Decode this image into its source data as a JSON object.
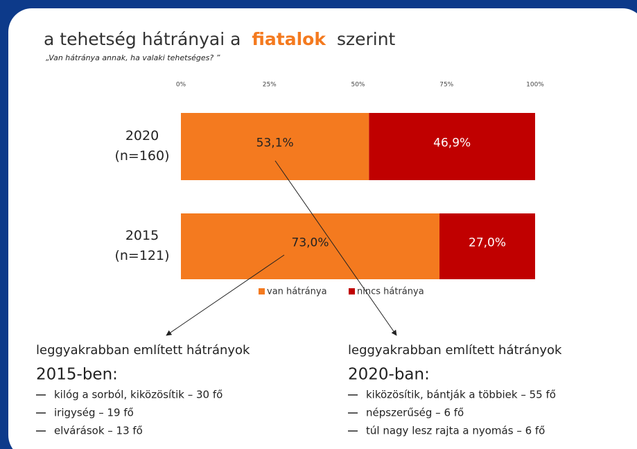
{
  "chart_data": {
    "type": "bar",
    "orientation": "horizontal",
    "stacked": true,
    "title": [
      "a tehetség hátrányai a",
      "fiatalok",
      "szerint"
    ],
    "subtitle": "„Van hátránya annak, ha valaki tehetséges? ”",
    "categories": [
      "2020",
      "2015"
    ],
    "category_notes": [
      "(n=160)",
      "(n=121)"
    ],
    "xlim": [
      0,
      100
    ],
    "xticks": [
      {
        "value": 0,
        "label": "0%"
      },
      {
        "value": 25,
        "label": "25%"
      },
      {
        "value": 50,
        "label": "50%"
      },
      {
        "value": 75,
        "label": "75%"
      },
      {
        "value": 100,
        "label": "100%"
      }
    ],
    "series": [
      {
        "name": "van hátránya",
        "color": "#f47a1f",
        "values": [
          53.1,
          73.0
        ],
        "value_labels": [
          "53,1%",
          "73,0%"
        ]
      },
      {
        "name": "nincs hátránya",
        "color": "#c00000",
        "values": [
          46.9,
          27.0
        ],
        "value_labels": [
          "46,9%",
          "27,0%"
        ]
      }
    ],
    "legend": "bottom"
  },
  "lists": [
    {
      "heading": "leggyakrabban említett hátrányok",
      "subheading": "2015-ben:",
      "items": [
        "kilóg a sorból, kiközösítik – 30 fő",
        "irigység – 19 fő",
        "elvárások – 13 fő"
      ]
    },
    {
      "heading": "leggyakrabban említett hátrányok",
      "subheading": "2020-ban:",
      "items": [
        "kiközösítik, bántják a többiek – 55 fő",
        "népszerűség – 6 fő",
        "túl nagy lesz rajta a nyomás – 6 fő"
      ]
    }
  ]
}
